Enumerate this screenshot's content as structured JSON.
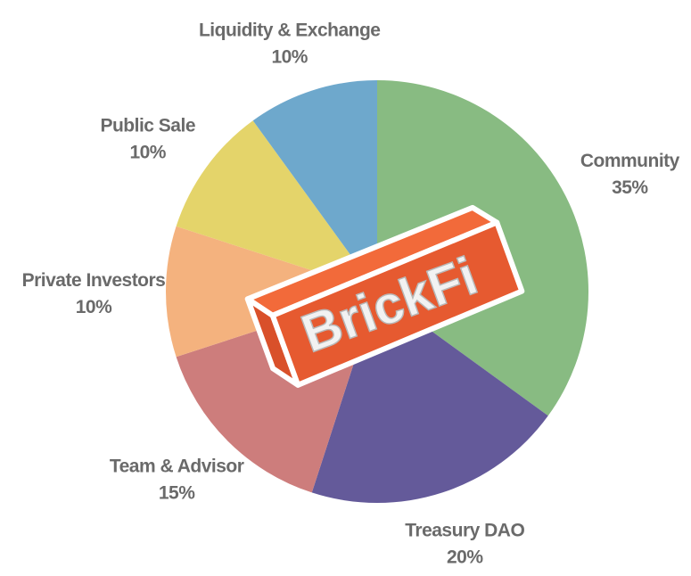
{
  "chart_data": {
    "type": "pie",
    "categories": [
      "Community",
      "Treasury DAO",
      "Team & Advisor",
      "Private Investors",
      "Public Sale",
      "Liquidity & Exchange"
    ],
    "values": [
      35,
      20,
      15,
      10,
      10,
      10
    ],
    "value_labels": [
      "35%",
      "20%",
      "15%",
      "10%",
      "10%",
      "10%"
    ],
    "colors": [
      "#88bb82",
      "#645a9a",
      "#cd7d7c",
      "#f4b27e",
      "#e4d46a",
      "#6ea8cc"
    ],
    "logo": "BrickFi"
  }
}
